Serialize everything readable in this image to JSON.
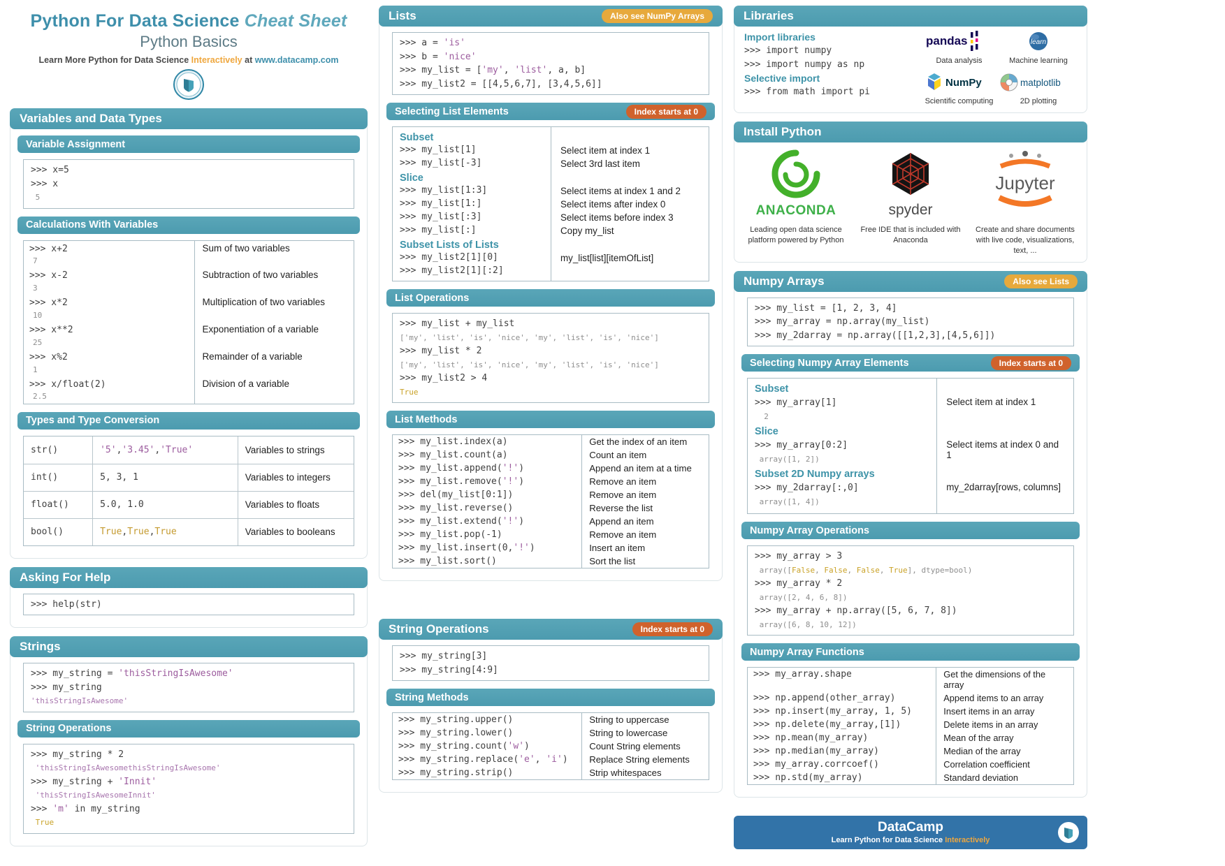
{
  "colors": {
    "teal_bar": "#4C9BAF",
    "title_teal": "#3E8FAB",
    "badge_gold": "#E7A93C",
    "badge_orange": "#D0622C",
    "footer_blue": "#3273A8",
    "string_purple": "#9C5C9E",
    "bool_gold": "#C9A227"
  },
  "badges": {
    "also_numpy": "Also see NumPy Arrays",
    "index0": "Index starts at 0",
    "also_lists": "Also see Lists"
  },
  "header": {
    "title_main": "Python For Data Science",
    "title_italic": "Cheat Sheet",
    "subtitle": "Python Basics",
    "tagline_prefix": "Learn More Python for Data Science",
    "tagline_highlight": "Interactively",
    "tagline_at": "at",
    "tagline_url": "www.datacamp.com"
  },
  "left": {
    "variables_title": "Variables and Data Types",
    "va": {
      "title": "Variable Assignment",
      "code": [
        [
          [
            "k",
            ">>> x=5"
          ]
        ],
        [
          [
            "k",
            ">>> x"
          ]
        ],
        [
          [
            "o",
            " 5"
          ]
        ]
      ]
    },
    "calc": {
      "title": "Calculations With Variables",
      "rows": [
        {
          "c": [
            [
              "k",
              ">>> x+2"
            ]
          ],
          "r": "7",
          "d": "Sum of two variables"
        },
        {
          "c": [
            [
              "k",
              ">>> x-2"
            ]
          ],
          "r": "3",
          "d": "Subtraction of two variables"
        },
        {
          "c": [
            [
              "k",
              ">>> x*2"
            ]
          ],
          "r": "10",
          "d": "Multiplication of two variables"
        },
        {
          "c": [
            [
              "k",
              ">>> x**2"
            ]
          ],
          "r": "25",
          "d": "Exponentiation of a variable"
        },
        {
          "c": [
            [
              "k",
              ">>> x%2"
            ]
          ],
          "r": "1",
          "d": "Remainder of a variable"
        },
        {
          "c": [
            [
              "k",
              ">>> x/float(2)"
            ]
          ],
          "r": "2.5",
          "d": "Division of a variable"
        }
      ]
    },
    "types": {
      "title": "Types and Type Conversion",
      "rows": [
        {
          "fn": "str()",
          "ex": [
            [
              "s",
              "'5'"
            ],
            [
              "k",
              ", "
            ],
            [
              "s",
              "'3.45'"
            ],
            [
              "k",
              ", "
            ],
            [
              "s",
              "'True'"
            ]
          ],
          "d": "Variables to strings"
        },
        {
          "fn": "int()",
          "ex": [
            [
              "k",
              "5, 3, 1"
            ]
          ],
          "d": "Variables to integers"
        },
        {
          "fn": "float()",
          "ex": [
            [
              "k",
              "5.0, 1.0"
            ]
          ],
          "d": "Variables to floats"
        },
        {
          "fn": "bool()",
          "ex": [
            [
              "g",
              "True"
            ],
            [
              "k",
              ", "
            ],
            [
              "g",
              "True"
            ],
            [
              "k",
              ", "
            ],
            [
              "g",
              "True"
            ]
          ],
          "d": "Variables to booleans"
        }
      ]
    },
    "help": {
      "title": "Asking For Help",
      "code": [
        [
          [
            "k",
            ">>> help(str)"
          ]
        ]
      ]
    },
    "strings": {
      "title": "Strings",
      "code": [
        [
          [
            "k",
            ">>> my_string = "
          ],
          [
            "s",
            "'thisStringIsAwesome'"
          ]
        ],
        [
          [
            "k",
            ">>> my_string"
          ]
        ],
        [
          [
            "os",
            "'thisStringIsAwesome'"
          ]
        ]
      ]
    },
    "strops": {
      "title": "String Operations",
      "code": [
        [
          [
            "k",
            ">>> my_string * 2"
          ]
        ],
        [
          [
            "os",
            " 'thisStringIsAwesomethisStringIsAwesome'"
          ]
        ],
        [
          [
            "k",
            ">>> my_string + "
          ],
          [
            "s",
            "'Innit'"
          ]
        ],
        [
          [
            "os",
            " 'thisStringIsAwesomeInnit'"
          ]
        ],
        [
          [
            "k",
            ">>> "
          ],
          [
            "s",
            "'m'"
          ],
          [
            "k",
            " in my_string"
          ]
        ],
        [
          [
            "og",
            " True"
          ]
        ]
      ]
    }
  },
  "mid": {
    "lists": {
      "title": "Lists",
      "code": [
        [
          [
            "k",
            ">>> a = "
          ],
          [
            "s",
            "'is'"
          ]
        ],
        [
          [
            "k",
            ">>> b = "
          ],
          [
            "s",
            "'nice'"
          ]
        ],
        [
          [
            "k",
            ">>> my_list = ["
          ],
          [
            "s",
            "'my'"
          ],
          [
            "k",
            ", "
          ],
          [
            "s",
            "'list'"
          ],
          [
            "k",
            ", a, b]"
          ]
        ],
        [
          [
            "k",
            ">>> my_list2 = [[4,5,6,7], [3,4,5,6]]"
          ]
        ]
      ]
    },
    "sel": {
      "title": "Selecting List Elements",
      "groups": [
        {
          "title": "Subset",
          "rows": [
            {
              "c": [
                [
                  "k",
                  ">>> my_list[1]"
                ]
              ],
              "d": "Select item at index 1"
            },
            {
              "c": [
                [
                  "k",
                  ">>> my_list[-3]"
                ]
              ],
              "d": "Select 3rd last item"
            }
          ]
        },
        {
          "title": "Slice",
          "rows": [
            {
              "c": [
                [
                  "k",
                  ">>> my_list[1:3]"
                ]
              ],
              "d": "Select items at index 1 and 2"
            },
            {
              "c": [
                [
                  "k",
                  ">>> my_list[1:]"
                ]
              ],
              "d": "Select items after index 0"
            },
            {
              "c": [
                [
                  "k",
                  ">>> my_list[:3]"
                ]
              ],
              "d": "Select items before index 3"
            },
            {
              "c": [
                [
                  "k",
                  ">>> my_list[:]"
                ]
              ],
              "d": "Copy my_list"
            }
          ]
        },
        {
          "title": "Subset Lists of Lists",
          "rows": [
            {
              "c": [
                [
                  "k",
                  ">>> my_list2[1][0]"
                ]
              ],
              "d": "my_list[list][itemOfList]"
            },
            {
              "c": [
                [
                  "k",
                  ">>> my_list2[1][:2]"
                ]
              ],
              "d": ""
            }
          ]
        }
      ]
    },
    "listops": {
      "title": "List Operations",
      "code": [
        [
          [
            "k",
            ">>> my_list + my_list"
          ]
        ],
        [
          [
            "o",
            "['my', 'list', 'is', 'nice', 'my', 'list', 'is', 'nice']"
          ]
        ],
        [
          [
            "k",
            ">>> my_list * 2"
          ]
        ],
        [
          [
            "o",
            "['my', 'list', 'is', 'nice', 'my', 'list', 'is', 'nice']"
          ]
        ],
        [
          [
            "k",
            ">>> my_list2 > 4"
          ]
        ],
        [
          [
            "og",
            "True"
          ]
        ]
      ]
    },
    "listmethods": {
      "title": "List Methods",
      "rows": [
        {
          "c": [
            [
              "k",
              ">>> my_list.index(a)"
            ]
          ],
          "d": "Get the index of an item"
        },
        {
          "c": [
            [
              "k",
              ">>> my_list.count(a)"
            ]
          ],
          "d": "Count an item"
        },
        {
          "c": [
            [
              "k",
              ">>> my_list.append("
            ],
            [
              "s",
              "'!'"
            ],
            [
              "k",
              ")"
            ]
          ],
          "d": "Append an item at a time"
        },
        {
          "c": [
            [
              "k",
              ">>> my_list.remove("
            ],
            [
              "s",
              "'!'"
            ],
            [
              "k",
              ")"
            ]
          ],
          "d": "Remove an item"
        },
        {
          "c": [
            [
              "k",
              ">>> del(my_list[0:1])"
            ]
          ],
          "d": "Remove an item"
        },
        {
          "c": [
            [
              "k",
              ">>> my_list.reverse()"
            ]
          ],
          "d": "Reverse the list"
        },
        {
          "c": [
            [
              "k",
              ">>> my_list.extend("
            ],
            [
              "s",
              "'!'"
            ],
            [
              "k",
              ")"
            ]
          ],
          "d": "Append an item"
        },
        {
          "c": [
            [
              "k",
              ">>> my_list.pop(-1)"
            ]
          ],
          "d": "Remove an item"
        },
        {
          "c": [
            [
              "k",
              ">>> my_list.insert(0,"
            ],
            [
              "s",
              "'!'"
            ],
            [
              "k",
              ")"
            ]
          ],
          "d": "Insert an item"
        },
        {
          "c": [
            [
              "k",
              ">>> my_list.sort()"
            ]
          ],
          "d": "Sort the list"
        }
      ]
    },
    "strops": {
      "title": "String Operations",
      "code": [
        [
          [
            "k",
            ">>> my_string[3]"
          ]
        ],
        [
          [
            "k",
            ">>> my_string[4:9]"
          ]
        ]
      ]
    },
    "strmethods": {
      "title": "String Methods",
      "rows": [
        {
          "c": [
            [
              "k",
              ">>> my_string.upper()"
            ]
          ],
          "d": "String to uppercase"
        },
        {
          "c": [
            [
              "k",
              ">>> my_string.lower()"
            ]
          ],
          "d": "String to lowercase"
        },
        {
          "c": [
            [
              "k",
              ">>> my_string.count("
            ],
            [
              "s",
              "'w'"
            ],
            [
              "k",
              ")"
            ]
          ],
          "d": "Count String elements"
        },
        {
          "c": [
            [
              "k",
              ">>> my_string.replace("
            ],
            [
              "s",
              "'e'"
            ],
            [
              "k",
              ", "
            ],
            [
              "s",
              "'i'"
            ],
            [
              "k",
              ")"
            ]
          ],
          "d": "Replace String elements"
        },
        {
          "c": [
            [
              "k",
              ">>> my_string.strip()"
            ]
          ],
          "d": "Strip whitespaces"
        }
      ]
    }
  },
  "right": {
    "libraries": {
      "title": "Libraries",
      "import_label": "Import libraries",
      "selective_label": "Selective import",
      "code1": [
        [
          [
            "k",
            ">>> import numpy"
          ]
        ],
        [
          [
            "k",
            ">>> import numpy as np"
          ]
        ]
      ],
      "code2": [
        [
          [
            "k",
            ">>> from math import pi"
          ]
        ]
      ],
      "logos": [
        {
          "brand": "pandas",
          "caption": "Data analysis"
        },
        {
          "brand": "learn",
          "caption": "Machine learning"
        },
        {
          "brand": "NumPy",
          "caption": "Scientific computing"
        },
        {
          "brand": "matplotlib",
          "caption": "2D plotting"
        }
      ]
    },
    "install": {
      "title": "Install Python",
      "items": [
        {
          "brand": "ANACONDA",
          "caption": "Leading open data science platform powered by Python"
        },
        {
          "brand": "spyder",
          "caption": "Free IDE that is included with Anaconda"
        },
        {
          "brand": "Jupyter",
          "caption": "Create and share documents with live code, visualizations, text, ..."
        }
      ]
    },
    "numpy": {
      "title": "Numpy Arrays",
      "code": [
        [
          [
            "k",
            ">>> my_list = [1, 2, 3, 4]"
          ]
        ],
        [
          [
            "k",
            ">>> my_array = np.array(my_list)"
          ]
        ],
        [
          [
            "k",
            ">>> my_2darray = np.array([[1,2,3],[4,5,6]])"
          ]
        ]
      ]
    },
    "nsel": {
      "title": "Selecting Numpy Array Elements",
      "groups": [
        {
          "title": "Subset",
          "lines": [
            [
              [
                "k",
                ">>> my_array[1]"
              ]
            ],
            [
              [
                "o",
                "  2"
              ]
            ]
          ],
          "desc": "Select item at index 1"
        },
        {
          "title": "Slice",
          "lines": [
            [
              [
                "k",
                ">>> my_array[0:2]"
              ]
            ],
            [
              [
                "o",
                " array([1, 2])"
              ]
            ]
          ],
          "desc": "Select items at index 0 and 1"
        },
        {
          "title": "Subset 2D Numpy arrays",
          "lines": [
            [
              [
                "k",
                ">>> my_2darray[:,0]"
              ]
            ],
            [
              [
                "o",
                " array([1, 4])"
              ]
            ]
          ],
          "desc": "my_2darray[rows, columns]"
        }
      ]
    },
    "nops": {
      "title": "Numpy Array Operations",
      "code": [
        [
          [
            "k",
            ">>> my_array > 3"
          ]
        ],
        [
          [
            "o",
            " array(["
          ],
          [
            "og",
            "False"
          ],
          [
            "o",
            ", "
          ],
          [
            "og",
            "False"
          ],
          [
            "o",
            ", "
          ],
          [
            "og",
            "False"
          ],
          [
            "o",
            ", "
          ],
          [
            "og",
            "True"
          ],
          [
            "o",
            "], dtype=bool)"
          ]
        ],
        [
          [
            "k",
            ">>> my_array * 2"
          ]
        ],
        [
          [
            "o",
            " array([2, 4, 6, 8])"
          ]
        ],
        [
          [
            "k",
            ">>> my_array + np.array([5, 6, 7, 8])"
          ]
        ],
        [
          [
            "o",
            " array([6, 8, 10, 12])"
          ]
        ]
      ]
    },
    "nfuncs": {
      "title": "Numpy Array Functions",
      "rows": [
        {
          "c": [
            [
              "k",
              ">>> my_array.shape"
            ]
          ],
          "d": "Get the dimensions of the array"
        },
        {
          "c": [
            [
              "k",
              ">>> np.append(other_array)"
            ]
          ],
          "d": "Append items to an array"
        },
        {
          "c": [
            [
              "k",
              ">>> np.insert(my_array, 1, 5)"
            ]
          ],
          "d": "Insert items in an array"
        },
        {
          "c": [
            [
              "k",
              ">>> np.delete(my_array,[1])"
            ]
          ],
          "d": "Delete items in an array"
        },
        {
          "c": [
            [
              "k",
              ">>> np.mean(my_array)"
            ]
          ],
          "d": "Mean of the array"
        },
        {
          "c": [
            [
              "k",
              ">>> np.median(my_array)"
            ]
          ],
          "d": "Median of the array"
        },
        {
          "c": [
            [
              "k",
              ">>> my_array.corrcoef()"
            ]
          ],
          "d": "Correlation coefficient"
        },
        {
          "c": [
            [
              "k",
              ">>> np.std(my_array)"
            ]
          ],
          "d": "Standard deviation"
        }
      ]
    }
  },
  "footer": {
    "brand": "DataCamp",
    "tagline_prefix": "Learn Python for Data Science",
    "tagline_highlight": "Interactively"
  }
}
